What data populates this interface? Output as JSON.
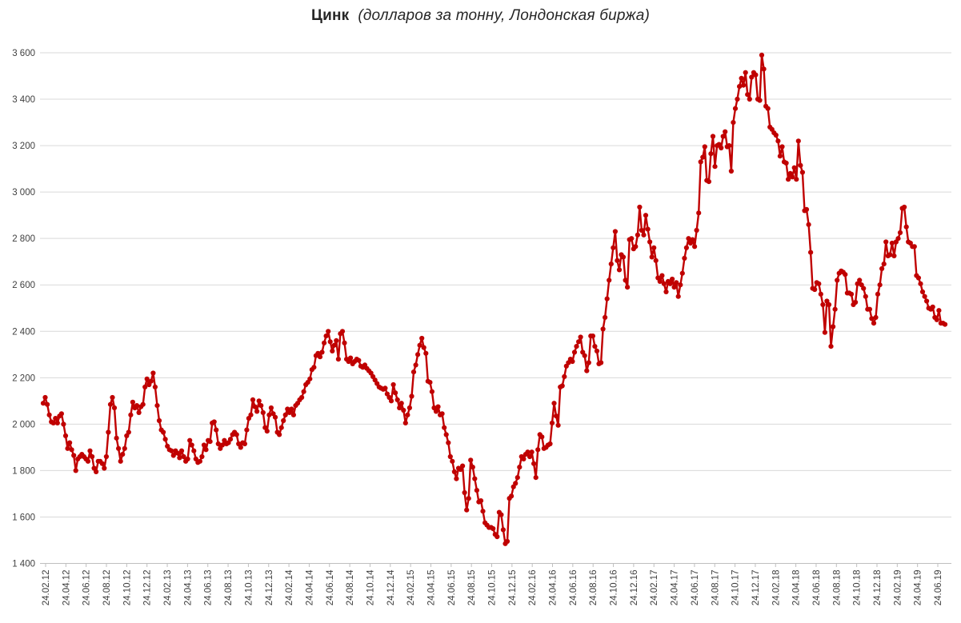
{
  "title": {
    "main": "Цинк",
    "subtitle": "(долларов за тонну, Лондонская биржа)"
  },
  "chart_data": {
    "type": "line",
    "title": "Цинк",
    "subtitle": "(долларов за тонну, Лондонская биржа)",
    "legend": "none",
    "grid": "horizontal",
    "marker": "circle",
    "line_color": "#C00000",
    "grid_color": "#D9D9D9",
    "axis_color": "#BFBFBF",
    "tick_text_color": "#404040",
    "title_color": "#262626",
    "ylim": [
      1400,
      3600
    ],
    "y_ticks": [
      3600,
      3400,
      3200,
      3000,
      2800,
      2600,
      2400,
      2200,
      2000,
      1800,
      1600,
      1400
    ],
    "y_tick_labels": [
      "3 600",
      "3 400",
      "3 200",
      "3 000",
      "2 800",
      "2 600",
      "2 400",
      "2 200",
      "2 000",
      "1 800",
      "1 600",
      "1 400"
    ],
    "x_tick_labels": [
      "24.02.12",
      "24.04.12",
      "24.06.12",
      "24.08.12",
      "24.10.12",
      "24.12.12",
      "24.02.13",
      "24.04.13",
      "24.06.13",
      "24.08.13",
      "24.10.13",
      "24.12.13",
      "24.02.14",
      "24.04.14",
      "24.06.14",
      "24.08.14",
      "24.10.14",
      "24.12.14",
      "24.02.15",
      "24.04.15",
      "24.06.15",
      "24.08.15",
      "24.10.15",
      "24.12.15",
      "24.02.16",
      "24.04.16",
      "24.06.16",
      "24.08.16",
      "24.10.16",
      "24.12.16",
      "24.02.17",
      "24.04.17",
      "24.06.17",
      "24.08.17",
      "24.10.17",
      "24.12.17",
      "24.02.18",
      "24.04.18",
      "24.06.18",
      "24.08.18",
      "24.10.18",
      "24.12.18",
      "24.02.19",
      "24.04.19",
      "24.06.19"
    ],
    "series": [
      {
        "name": "Цинк, долларов за тонну",
        "values": [
          2090,
          2115,
          2085,
          2040,
          2010,
          2005,
          2025,
          2005,
          2035,
          2045,
          2000,
          1950,
          1895,
          1920,
          1890,
          1865,
          1800,
          1850,
          1860,
          1870,
          1860,
          1850,
          1840,
          1885,
          1860,
          1810,
          1795,
          1840,
          1840,
          1830,
          1810,
          1860,
          1965,
          2085,
          2115,
          2070,
          1940,
          1895,
          1840,
          1870,
          1895,
          1950,
          1965,
          2040,
          2095,
          2070,
          2080,
          2050,
          2075,
          2085,
          2160,
          2195,
          2170,
          2185,
          2220,
          2160,
          2080,
          2015,
          1975,
          1965,
          1935,
          1905,
          1890,
          1885,
          1865,
          1885,
          1875,
          1855,
          1885,
          1860,
          1840,
          1850,
          1930,
          1910,
          1885,
          1850,
          1835,
          1840,
          1860,
          1910,
          1890,
          1930,
          1925,
          2005,
          2010,
          1975,
          1915,
          1895,
          1910,
          1930,
          1915,
          1920,
          1935,
          1955,
          1965,
          1955,
          1915,
          1900,
          1920,
          1915,
          1975,
          2025,
          2040,
          2105,
          2075,
          2055,
          2100,
          2080,
          2050,
          1985,
          1970,
          2040,
          2070,
          2045,
          2030,
          1965,
          1955,
          1985,
          2015,
          2040,
          2065,
          2050,
          2065,
          2040,
          2080,
          2090,
          2105,
          2115,
          2140,
          2170,
          2180,
          2195,
          2235,
          2245,
          2295,
          2305,
          2290,
          2310,
          2350,
          2380,
          2400,
          2355,
          2315,
          2340,
          2360,
          2280,
          2390,
          2400,
          2350,
          2280,
          2270,
          2285,
          2260,
          2270,
          2280,
          2275,
          2250,
          2245,
          2255,
          2240,
          2230,
          2220,
          2205,
          2190,
          2175,
          2160,
          2155,
          2150,
          2155,
          2130,
          2115,
          2100,
          2170,
          2135,
          2105,
          2070,
          2090,
          2060,
          2005,
          2040,
          2070,
          2120,
          2225,
          2255,
          2300,
          2340,
          2370,
          2330,
          2305,
          2185,
          2180,
          2140,
          2070,
          2055,
          2075,
          2040,
          2045,
          1985,
          1955,
          1920,
          1860,
          1840,
          1795,
          1765,
          1810,
          1805,
          1820,
          1705,
          1630,
          1680,
          1845,
          1815,
          1765,
          1715,
          1665,
          1670,
          1625,
          1575,
          1565,
          1555,
          1555,
          1550,
          1525,
          1515,
          1620,
          1610,
          1545,
          1485,
          1495,
          1680,
          1690,
          1730,
          1745,
          1770,
          1815,
          1860,
          1850,
          1870,
          1880,
          1860,
          1880,
          1830,
          1770,
          1890,
          1955,
          1945,
          1895,
          1900,
          1910,
          1915,
          2005,
          2090,
          2035,
          1995,
          2160,
          2165,
          2205,
          2250,
          2265,
          2280,
          2270,
          2310,
          2335,
          2355,
          2375,
          2310,
          2295,
          2230,
          2265,
          2380,
          2380,
          2335,
          2315,
          2260,
          2265,
          2410,
          2460,
          2540,
          2620,
          2690,
          2760,
          2830,
          2705,
          2665,
          2730,
          2720,
          2620,
          2590,
          2795,
          2800,
          2755,
          2765,
          2815,
          2935,
          2835,
          2815,
          2900,
          2840,
          2785,
          2720,
          2760,
          2705,
          2630,
          2615,
          2640,
          2605,
          2570,
          2615,
          2605,
          2625,
          2590,
          2610,
          2550,
          2600,
          2650,
          2715,
          2760,
          2800,
          2780,
          2795,
          2765,
          2835,
          2910,
          3130,
          3150,
          3195,
          3050,
          3045,
          3165,
          3240,
          3110,
          3200,
          3205,
          3190,
          3240,
          3260,
          3195,
          3200,
          3090,
          3300,
          3360,
          3400,
          3455,
          3490,
          3460,
          3515,
          3420,
          3400,
          3495,
          3515,
          3505,
          3400,
          3395,
          3590,
          3530,
          3370,
          3360,
          3280,
          3270,
          3255,
          3245,
          3220,
          3155,
          3195,
          3130,
          3125,
          3055,
          3080,
          3065,
          3105,
          3055,
          3220,
          3115,
          3085,
          2920,
          2925,
          2860,
          2740,
          2585,
          2580,
          2610,
          2605,
          2560,
          2515,
          2395,
          2530,
          2515,
          2335,
          2420,
          2495,
          2620,
          2650,
          2660,
          2655,
          2645,
          2565,
          2565,
          2560,
          2515,
          2525,
          2605,
          2620,
          2600,
          2585,
          2550,
          2495,
          2495,
          2455,
          2435,
          2460,
          2560,
          2600,
          2670,
          2690,
          2785,
          2725,
          2730,
          2780,
          2725,
          2785,
          2800,
          2825,
          2930,
          2935,
          2850,
          2785,
          2780,
          2765,
          2765,
          2640,
          2630,
          2605,
          2570,
          2550,
          2530,
          2500,
          2495,
          2505,
          2460,
          2450,
          2490,
          2435,
          2435,
          2430
        ]
      }
    ]
  }
}
